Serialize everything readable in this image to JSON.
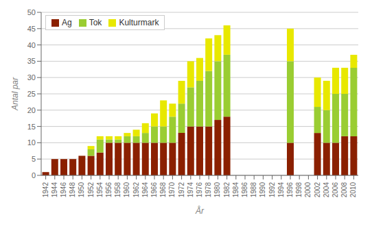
{
  "chart_data": {
    "type": "bar",
    "stacked": true,
    "xlabel": "År",
    "ylabel": "Antal par",
    "categories": [
      "1942",
      "1944",
      "1946",
      "1948",
      "1950",
      "1952",
      "1954",
      "1956",
      "1958",
      "1960",
      "1962",
      "1964",
      "1966",
      "1968",
      "1970",
      "1972",
      "1974",
      "1976",
      "1978",
      "1980",
      "1982",
      "1984",
      "1986",
      "1988",
      "1990",
      "1992",
      "1994",
      "1996",
      "1998",
      "2000",
      "2002",
      "2004",
      "2006",
      "2008",
      "2010"
    ],
    "series": [
      {
        "name": "Ag",
        "color": "#8B2000",
        "values": [
          1,
          5,
          5,
          5,
          6,
          6,
          7,
          10,
          10,
          10,
          10,
          10,
          10,
          10,
          10,
          13,
          15,
          15,
          15,
          17,
          18,
          0,
          0,
          0,
          0,
          0,
          0,
          10,
          0,
          0,
          13,
          10,
          10,
          12,
          12
        ]
      },
      {
        "name": "Tok",
        "color": "#9ACD32",
        "values": [
          0,
          0,
          0,
          0,
          0,
          2,
          4,
          1,
          1,
          2,
          2,
          3,
          5,
          5,
          8,
          9,
          12,
          14,
          17,
          18,
          19,
          0,
          0,
          0,
          0,
          0,
          0,
          25,
          0,
          0,
          8,
          10,
          15,
          13,
          21
        ]
      },
      {
        "name": "Kulturmark",
        "color": "#E8E800",
        "values": [
          0,
          0,
          0,
          0,
          0,
          1,
          1,
          1,
          1,
          1,
          2,
          3,
          4,
          8,
          4,
          7,
          8,
          7,
          10,
          8,
          9,
          0,
          0,
          0,
          0,
          0,
          0,
          10,
          0,
          0,
          9,
          9,
          8,
          8,
          4
        ]
      }
    ],
    "ylim": [
      0,
      50
    ],
    "yticks": [
      0,
      5,
      10,
      15,
      20,
      25,
      30,
      35,
      40,
      45,
      50
    ],
    "grid": true,
    "legend": "upper left"
  }
}
